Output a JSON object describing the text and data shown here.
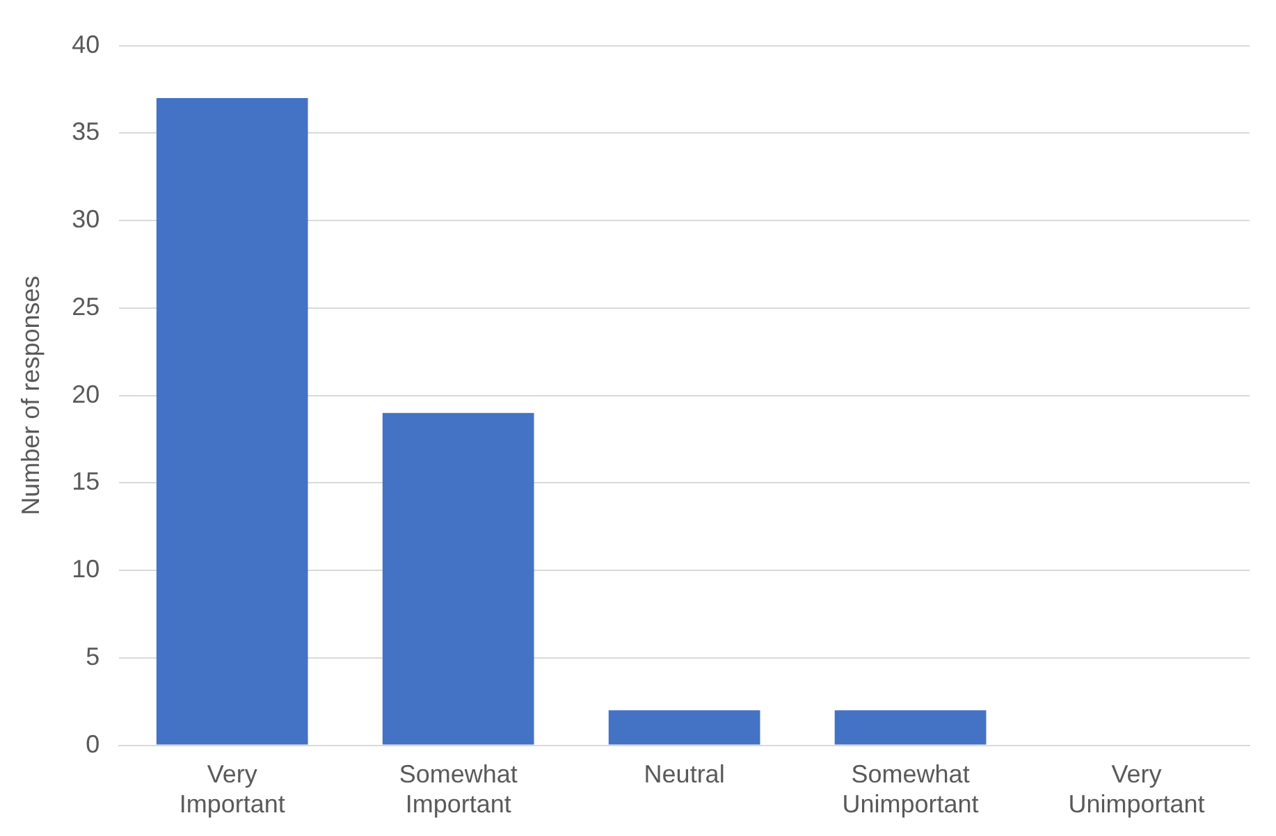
{
  "chart_data": {
    "type": "bar",
    "ylabel": "Number of responses",
    "categories": [
      "Very Important",
      "Somewhat Important",
      "Neutral",
      "Somewhat Unimportant",
      "Very Unimportant"
    ],
    "values": [
      37,
      19,
      2,
      2,
      0
    ],
    "color": "#4472c4",
    "ylim": [
      0,
      40
    ],
    "yticks": [
      0,
      5,
      10,
      15,
      20,
      25,
      30,
      35,
      40
    ],
    "grid": "y",
    "legend": false
  }
}
